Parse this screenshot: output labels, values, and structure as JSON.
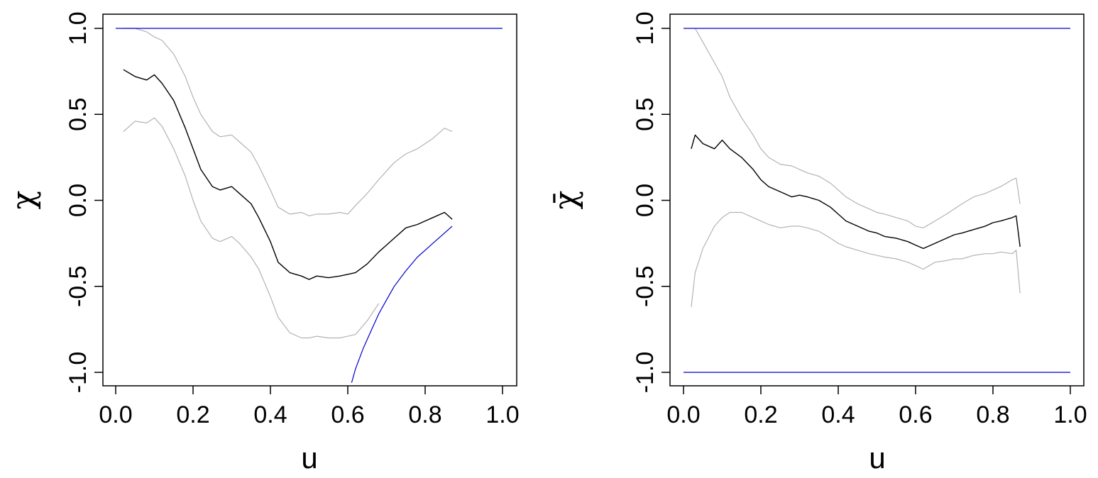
{
  "chart_data": [
    {
      "type": "line",
      "panel": "left",
      "xlabel": "u",
      "ylabel": "χ",
      "xlim": [
        0,
        1
      ],
      "ylim": [
        -1,
        1
      ],
      "x_ticks": [
        "0.0",
        "0.2",
        "0.4",
        "0.6",
        "0.8",
        "1.0"
      ],
      "y_ticks": [
        "-1.0",
        "-0.5",
        "0.0",
        "0.5",
        "1.0"
      ],
      "grid": false,
      "legend": "none",
      "series": [
        {
          "role": "estimate",
          "color": "#000000",
          "x": [
            0.02,
            0.05,
            0.08,
            0.1,
            0.12,
            0.15,
            0.18,
            0.2,
            0.22,
            0.25,
            0.27,
            0.3,
            0.32,
            0.35,
            0.37,
            0.4,
            0.42,
            0.45,
            0.48,
            0.5,
            0.52,
            0.55,
            0.58,
            0.6,
            0.62,
            0.65,
            0.68,
            0.7,
            0.72,
            0.75,
            0.78,
            0.8,
            0.82,
            0.85,
            0.87
          ],
          "y": [
            0.76,
            0.72,
            0.7,
            0.73,
            0.68,
            0.58,
            0.42,
            0.3,
            0.18,
            0.08,
            0.06,
            0.08,
            0.04,
            -0.02,
            -0.1,
            -0.24,
            -0.36,
            -0.42,
            -0.44,
            -0.46,
            -0.44,
            -0.45,
            -0.44,
            -0.43,
            -0.42,
            -0.37,
            -0.3,
            -0.26,
            -0.22,
            -0.16,
            -0.14,
            -0.12,
            -0.1,
            -0.07,
            -0.11
          ]
        },
        {
          "role": "upper-bound",
          "color": "#b3b3b3",
          "x": [
            0.02,
            0.05,
            0.08,
            0.1,
            0.12,
            0.15,
            0.18,
            0.2,
            0.22,
            0.25,
            0.27,
            0.3,
            0.32,
            0.35,
            0.37,
            0.4,
            0.42,
            0.45,
            0.48,
            0.5,
            0.52,
            0.55,
            0.58,
            0.6,
            0.62,
            0.65,
            0.68,
            0.7,
            0.72,
            0.75,
            0.78,
            0.8,
            0.82,
            0.85,
            0.87
          ],
          "y": [
            1.0,
            1.0,
            0.98,
            0.95,
            0.93,
            0.85,
            0.72,
            0.6,
            0.5,
            0.4,
            0.37,
            0.38,
            0.34,
            0.28,
            0.2,
            0.06,
            -0.04,
            -0.08,
            -0.07,
            -0.09,
            -0.08,
            -0.08,
            -0.07,
            -0.08,
            -0.03,
            0.04,
            0.12,
            0.17,
            0.22,
            0.27,
            0.3,
            0.33,
            0.36,
            0.42,
            0.4
          ]
        },
        {
          "role": "lower-bound",
          "color": "#b3b3b3",
          "x": [
            0.02,
            0.05,
            0.08,
            0.1,
            0.12,
            0.15,
            0.18,
            0.2,
            0.22,
            0.25,
            0.27,
            0.3,
            0.32,
            0.35,
            0.37,
            0.4,
            0.42,
            0.45,
            0.48,
            0.5,
            0.52,
            0.55,
            0.58,
            0.6,
            0.62,
            0.65,
            0.68
          ],
          "y": [
            0.4,
            0.46,
            0.45,
            0.48,
            0.43,
            0.3,
            0.14,
            0.0,
            -0.12,
            -0.22,
            -0.24,
            -0.21,
            -0.25,
            -0.33,
            -0.4,
            -0.56,
            -0.68,
            -0.77,
            -0.8,
            -0.8,
            -0.79,
            -0.8,
            -0.8,
            -0.79,
            -0.78,
            -0.7,
            -0.6
          ]
        },
        {
          "role": "reference-upper",
          "color": "#0000cc",
          "x": [
            0,
            1
          ],
          "y": [
            1.0,
            1.0
          ]
        },
        {
          "role": "reference-lower-curve",
          "color": "#0000cc",
          "x": [
            0.61,
            0.62,
            0.64,
            0.66,
            0.68,
            0.7,
            0.72,
            0.75,
            0.78,
            0.8,
            0.82,
            0.85,
            0.87
          ],
          "y": [
            -1.06,
            -0.98,
            -0.86,
            -0.76,
            -0.66,
            -0.58,
            -0.5,
            -0.41,
            -0.33,
            -0.29,
            -0.25,
            -0.19,
            -0.15
          ]
        }
      ]
    },
    {
      "type": "line",
      "panel": "right",
      "xlabel": "u",
      "ylabel": "χ̄",
      "xlim": [
        0,
        1
      ],
      "ylim": [
        -1,
        1
      ],
      "x_ticks": [
        "0.0",
        "0.2",
        "0.4",
        "0.6",
        "0.8",
        "1.0"
      ],
      "y_ticks": [
        "-1.0",
        "-0.5",
        "0.0",
        "0.5",
        "1.0"
      ],
      "grid": false,
      "legend": "none",
      "series": [
        {
          "role": "estimate",
          "color": "#000000",
          "x": [
            0.02,
            0.03,
            0.05,
            0.08,
            0.1,
            0.12,
            0.15,
            0.18,
            0.2,
            0.22,
            0.25,
            0.28,
            0.3,
            0.32,
            0.35,
            0.38,
            0.4,
            0.42,
            0.45,
            0.48,
            0.5,
            0.52,
            0.55,
            0.58,
            0.6,
            0.62,
            0.65,
            0.68,
            0.7,
            0.72,
            0.75,
            0.78,
            0.8,
            0.82,
            0.85,
            0.86,
            0.87
          ],
          "y": [
            0.3,
            0.38,
            0.33,
            0.3,
            0.35,
            0.3,
            0.25,
            0.18,
            0.12,
            0.08,
            0.05,
            0.02,
            0.03,
            0.02,
            0.0,
            -0.04,
            -0.08,
            -0.12,
            -0.15,
            -0.18,
            -0.19,
            -0.21,
            -0.22,
            -0.24,
            -0.26,
            -0.28,
            -0.25,
            -0.22,
            -0.2,
            -0.19,
            -0.17,
            -0.15,
            -0.13,
            -0.12,
            -0.1,
            -0.09,
            -0.27
          ]
        },
        {
          "role": "upper-bound",
          "color": "#b3b3b3",
          "x": [
            0.03,
            0.05,
            0.08,
            0.1,
            0.12,
            0.15,
            0.18,
            0.2,
            0.22,
            0.25,
            0.28,
            0.3,
            0.32,
            0.35,
            0.38,
            0.4,
            0.42,
            0.45,
            0.48,
            0.5,
            0.52,
            0.55,
            0.58,
            0.6,
            0.62,
            0.65,
            0.68,
            0.7,
            0.72,
            0.75,
            0.78,
            0.8,
            0.82,
            0.85,
            0.86,
            0.87
          ],
          "y": [
            1.0,
            0.92,
            0.8,
            0.72,
            0.6,
            0.48,
            0.38,
            0.3,
            0.25,
            0.21,
            0.2,
            0.18,
            0.16,
            0.14,
            0.1,
            0.06,
            0.02,
            -0.02,
            -0.05,
            -0.07,
            -0.08,
            -0.1,
            -0.12,
            -0.15,
            -0.16,
            -0.12,
            -0.08,
            -0.05,
            -0.02,
            0.02,
            0.04,
            0.06,
            0.08,
            0.12,
            0.13,
            -0.02
          ]
        },
        {
          "role": "lower-bound",
          "color": "#b3b3b3",
          "x": [
            0.02,
            0.03,
            0.05,
            0.08,
            0.1,
            0.12,
            0.15,
            0.18,
            0.2,
            0.22,
            0.25,
            0.28,
            0.3,
            0.32,
            0.35,
            0.38,
            0.4,
            0.42,
            0.45,
            0.48,
            0.5,
            0.52,
            0.55,
            0.58,
            0.6,
            0.62,
            0.65,
            0.68,
            0.7,
            0.72,
            0.75,
            0.78,
            0.8,
            0.82,
            0.85,
            0.86,
            0.87
          ],
          "y": [
            -0.62,
            -0.42,
            -0.28,
            -0.15,
            -0.1,
            -0.07,
            -0.07,
            -0.1,
            -0.12,
            -0.14,
            -0.16,
            -0.15,
            -0.15,
            -0.16,
            -0.18,
            -0.22,
            -0.25,
            -0.27,
            -0.29,
            -0.31,
            -0.32,
            -0.33,
            -0.34,
            -0.36,
            -0.38,
            -0.4,
            -0.36,
            -0.35,
            -0.34,
            -0.34,
            -0.32,
            -0.31,
            -0.31,
            -0.3,
            -0.31,
            -0.29,
            -0.54
          ]
        },
        {
          "role": "reference-upper",
          "color": "#0000cc",
          "x": [
            0,
            1
          ],
          "y": [
            1.0,
            1.0
          ]
        },
        {
          "role": "reference-lower",
          "color": "#0000cc",
          "x": [
            0,
            1
          ],
          "y": [
            -1.0,
            -1.0
          ]
        }
      ]
    }
  ]
}
